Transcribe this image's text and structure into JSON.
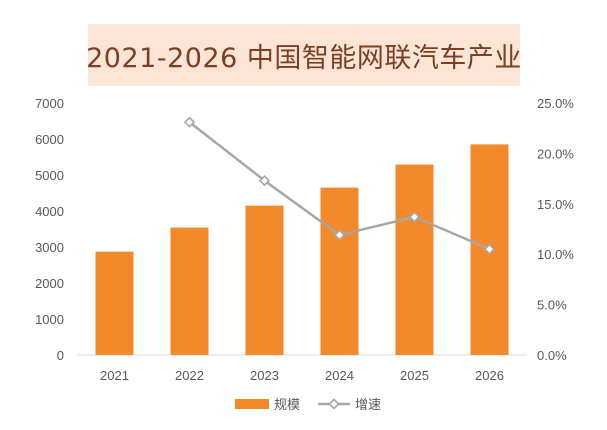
{
  "colors": {
    "bar": "#f28a2b",
    "line": "#a6a6a6",
    "title_background": "#fce4d6",
    "title_text": "#7b3f22",
    "axis_text": "#595959",
    "grid": "#e0e0e0"
  },
  "chart_data": {
    "type": "bar",
    "title": "2021-2026 中国智能网联汽车产业",
    "categories": [
      "2021",
      "2022",
      "2023",
      "2024",
      "2025",
      "2026"
    ],
    "series": [
      {
        "name": "规模",
        "type": "bar",
        "axis": "left",
        "values": [
          2870,
          3540,
          4150,
          4650,
          5290,
          5850
        ]
      },
      {
        "name": "增速",
        "type": "line",
        "axis": "right",
        "values": [
          null,
          0.231,
          0.173,
          0.119,
          0.137,
          0.105
        ]
      }
    ],
    "y_left": {
      "min": 0,
      "max": 7000,
      "ticks": [
        "0",
        "1000",
        "2000",
        "3000",
        "4000",
        "5000",
        "6000",
        "7000"
      ]
    },
    "y_right": {
      "min": 0,
      "max": 0.25,
      "ticks": [
        "0.0%",
        "5.0%",
        "10.0%",
        "15.0%",
        "20.0%",
        "25.0%"
      ]
    },
    "grid": false,
    "legend": "bottom"
  }
}
